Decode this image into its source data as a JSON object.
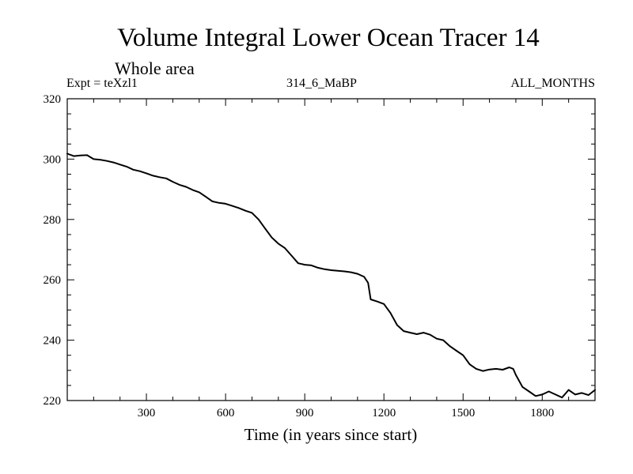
{
  "chart_data": {
    "type": "line",
    "title": "Volume Integral Lower Ocean Tracer 14",
    "subtitle": "Whole area",
    "expt_label": "Expt = teXzl1",
    "center_label": "314_6_MaBP",
    "right_label": "ALL_MONTHS",
    "xlabel": "Time (in years since start)",
    "ylabel": "",
    "xlim": [
      0,
      2000
    ],
    "ylim": [
      220,
      320
    ],
    "x_ticks": [
      300,
      600,
      900,
      1200,
      1500,
      1800
    ],
    "x_tick_labels": [
      "300",
      "600",
      "900",
      "1200",
      "1500",
      "1800"
    ],
    "y_ticks": [
      220,
      240,
      260,
      280,
      300,
      320
    ],
    "y_tick_labels": [
      "220",
      "240",
      "260",
      "280",
      "300",
      "320"
    ],
    "line_color": "#000000",
    "series": [
      {
        "name": "Lower Ocean Tracer 14",
        "x": [
          0,
          25,
          50,
          75,
          100,
          125,
          150,
          175,
          200,
          225,
          250,
          275,
          300,
          325,
          350,
          375,
          400,
          425,
          450,
          475,
          500,
          525,
          550,
          575,
          600,
          625,
          650,
          675,
          700,
          725,
          750,
          775,
          800,
          825,
          850,
          875,
          900,
          925,
          950,
          975,
          1000,
          1025,
          1050,
          1075,
          1100,
          1125,
          1140,
          1150,
          1175,
          1200,
          1225,
          1250,
          1275,
          1300,
          1325,
          1350,
          1375,
          1400,
          1425,
          1450,
          1475,
          1500,
          1525,
          1550,
          1575,
          1600,
          1625,
          1650,
          1675,
          1690,
          1700,
          1725,
          1750,
          1775,
          1800,
          1825,
          1850,
          1875,
          1900,
          1925,
          1950,
          1975,
          2000
        ],
        "values": [
          301.8,
          301.0,
          301.2,
          301.3,
          300.0,
          299.8,
          299.4,
          298.9,
          298.2,
          297.5,
          296.5,
          296.0,
          295.3,
          294.5,
          294.0,
          293.6,
          292.5,
          291.5,
          290.8,
          289.8,
          289.0,
          287.5,
          286.0,
          285.5,
          285.2,
          284.5,
          283.8,
          282.9,
          282.2,
          280.0,
          277.0,
          274.0,
          272.0,
          270.5,
          268.0,
          265.5,
          265.0,
          264.8,
          264.0,
          263.5,
          263.2,
          263.0,
          262.8,
          262.5,
          262.0,
          261.0,
          259.0,
          253.5,
          252.8,
          252.0,
          249.0,
          245.0,
          243.0,
          242.5,
          242.0,
          242.5,
          241.8,
          240.5,
          240.0,
          238.0,
          236.5,
          235.0,
          232.0,
          230.5,
          229.8,
          230.3,
          230.5,
          230.2,
          231.0,
          230.5,
          228.5,
          224.5,
          223.0,
          221.5,
          222.0,
          223.0,
          222.0,
          221.0,
          223.5,
          222.0,
          222.5,
          221.8,
          223.5
        ]
      }
    ]
  }
}
